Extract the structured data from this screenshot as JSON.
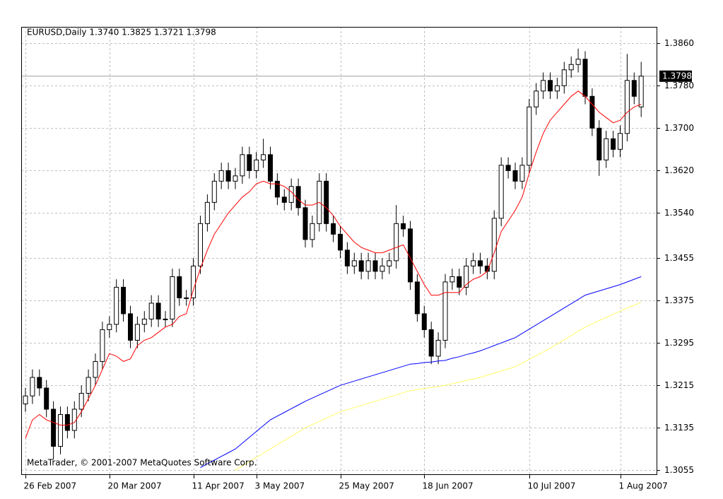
{
  "chart_data": {
    "type": "candlestick",
    "title": "EURUSD,Daily  1.3740 1.3825 1.3721 1.3798",
    "annotation": "MetaTrader, © 2001-2007 MetaQuotes Software Corp.",
    "categories": [
      "26 Feb 2007",
      null,
      null,
      null,
      null,
      null,
      null,
      null,
      null,
      null,
      null,
      null,
      "20 Mar 2007",
      null,
      null,
      null,
      null,
      null,
      null,
      null,
      null,
      null,
      null,
      null,
      "11 Apr 2007",
      null,
      null,
      null,
      null,
      null,
      null,
      null,
      null,
      "3 May 2007",
      null,
      null,
      null,
      null,
      null,
      null,
      null,
      null,
      null,
      null,
      null,
      "25 May 2007",
      null,
      null,
      null,
      null,
      null,
      null,
      null,
      null,
      null,
      null,
      null,
      "18 Jun 2007",
      null,
      null,
      null,
      null,
      null,
      null,
      null,
      null,
      null,
      null,
      null,
      null,
      null,
      null,
      "10 Jul 2007",
      null,
      null,
      null,
      null,
      null,
      null,
      null,
      null,
      null,
      null,
      null,
      null,
      "1 Aug 2007",
      null,
      null,
      null
    ],
    "open": [
      1.318,
      1.3195,
      1.323,
      1.321,
      1.317,
      1.31,
      1.316,
      1.313,
      1.317,
      1.32,
      1.323,
      1.326,
      1.332,
      1.333,
      1.34,
      1.335,
      1.33,
      1.333,
      1.334,
      1.337,
      1.334,
      1.334,
      1.342,
      1.338,
      1.338,
      1.344,
      1.352,
      1.356,
      1.36,
      1.362,
      1.36,
      1.361,
      1.365,
      1.362,
      1.364,
      1.365,
      1.36,
      1.357,
      1.356,
      1.359,
      1.355,
      1.349,
      1.352,
      1.36,
      1.352,
      1.35,
      1.347,
      1.344,
      1.345,
      1.343,
      1.345,
      1.343,
      1.344,
      1.345,
      1.352,
      1.351,
      1.341,
      1.335,
      1.332,
      1.327,
      1.33,
      1.341,
      1.342,
      1.34,
      1.344,
      1.345,
      1.344,
      1.343,
      1.353,
      1.363,
      1.362,
      1.36,
      1.363,
      1.374,
      1.377,
      1.379,
      1.377,
      1.378,
      1.381,
      1.382,
      1.383,
      1.376,
      1.37,
      1.364,
      1.368,
      1.366,
      1.369,
      1.379,
      1.374
    ],
    "high": [
      1.321,
      1.3245,
      1.3245,
      1.3225,
      1.3185,
      1.3175,
      1.3175,
      1.3185,
      1.3215,
      1.3245,
      1.3275,
      1.3335,
      1.3345,
      1.3415,
      1.3415,
      1.3365,
      1.3345,
      1.3355,
      1.3385,
      1.3385,
      1.3355,
      1.3435,
      1.3435,
      1.3395,
      1.3455,
      1.3535,
      1.3575,
      1.3615,
      1.3635,
      1.3635,
      1.3625,
      1.3665,
      1.3665,
      1.3655,
      1.368,
      1.3665,
      1.3615,
      1.3585,
      1.3605,
      1.3605,
      1.3565,
      1.3535,
      1.3615,
      1.3615,
      1.3535,
      1.3515,
      1.3485,
      1.3465,
      1.3465,
      1.3465,
      1.3465,
      1.3455,
      1.3465,
      1.3555,
      1.3535,
      1.3525,
      1.3425,
      1.3365,
      1.3335,
      1.3315,
      1.3425,
      1.3435,
      1.3435,
      1.3455,
      1.3465,
      1.3465,
      1.3455,
      1.3545,
      1.3645,
      1.3645,
      1.3635,
      1.3645,
      1.3755,
      1.3785,
      1.3805,
      1.3805,
      1.3795,
      1.3825,
      1.3835,
      1.385,
      1.3845,
      1.3775,
      1.3715,
      1.3695,
      1.3695,
      1.3705,
      1.384,
      1.3805,
      1.3825
    ],
    "low": [
      1.3165,
      1.318,
      1.3195,
      1.3155,
      1.3075,
      1.3085,
      1.3115,
      1.3115,
      1.3155,
      1.3185,
      1.3215,
      1.3245,
      1.3305,
      1.3315,
      1.3335,
      1.3285,
      1.3285,
      1.3315,
      1.3325,
      1.3325,
      1.3325,
      1.3325,
      1.3365,
      1.3365,
      1.3365,
      1.3425,
      1.3505,
      1.3545,
      1.3585,
      1.3585,
      1.3585,
      1.3595,
      1.3605,
      1.3605,
      1.3625,
      1.3585,
      1.3555,
      1.3545,
      1.3545,
      1.3535,
      1.3475,
      1.3475,
      1.3505,
      1.3505,
      1.3485,
      1.3455,
      1.3425,
      1.3425,
      1.3415,
      1.3415,
      1.3415,
      1.3415,
      1.3425,
      1.3435,
      1.3495,
      1.3395,
      1.3335,
      1.3305,
      1.3255,
      1.3255,
      1.3285,
      1.3395,
      1.3385,
      1.3385,
      1.3425,
      1.3425,
      1.3415,
      1.3415,
      1.3515,
      1.3605,
      1.3585,
      1.3585,
      1.3615,
      1.3725,
      1.3755,
      1.3755,
      1.3755,
      1.3765,
      1.3795,
      1.3805,
      1.3745,
      1.3685,
      1.361,
      1.3625,
      1.3645,
      1.3645,
      1.3675,
      1.3745,
      1.3721
    ],
    "close": [
      1.3195,
      1.323,
      1.321,
      1.317,
      1.31,
      1.316,
      1.313,
      1.317,
      1.32,
      1.323,
      1.326,
      1.332,
      1.333,
      1.34,
      1.335,
      1.33,
      1.333,
      1.334,
      1.337,
      1.334,
      1.334,
      1.342,
      1.338,
      1.338,
      1.344,
      1.352,
      1.356,
      1.36,
      1.362,
      1.36,
      1.361,
      1.365,
      1.362,
      1.364,
      1.365,
      1.36,
      1.357,
      1.356,
      1.359,
      1.355,
      1.349,
      1.352,
      1.36,
      1.352,
      1.35,
      1.347,
      1.344,
      1.345,
      1.343,
      1.345,
      1.343,
      1.344,
      1.345,
      1.352,
      1.351,
      1.341,
      1.335,
      1.332,
      1.327,
      1.33,
      1.341,
      1.342,
      1.34,
      1.344,
      1.345,
      1.344,
      1.343,
      1.353,
      1.363,
      1.362,
      1.36,
      1.363,
      1.374,
      1.377,
      1.379,
      1.377,
      1.378,
      1.381,
      1.382,
      1.383,
      1.376,
      1.37,
      1.364,
      1.368,
      1.366,
      1.369,
      1.379,
      1.376,
      1.3798
    ],
    "overlays": [
      {
        "color": "#ff0000",
        "values": [
          1.3115,
          1.315,
          1.316,
          1.315,
          1.3145,
          1.314,
          1.314,
          1.3145,
          1.3165,
          1.319,
          1.3215,
          1.3245,
          1.3275,
          1.327,
          1.326,
          1.3265,
          1.329,
          1.33,
          1.3305,
          1.3315,
          1.3325,
          1.333,
          1.3345,
          1.335,
          1.3395,
          1.3435,
          1.347,
          1.35,
          1.352,
          1.354,
          1.3555,
          1.357,
          1.358,
          1.3595,
          1.36,
          1.3595,
          1.3595,
          1.359,
          1.358,
          1.3565,
          1.3555,
          1.3555,
          1.356,
          1.355,
          1.3535,
          1.3515,
          1.35,
          1.3485,
          1.3475,
          1.347,
          1.3465,
          1.3465,
          1.347,
          1.3475,
          1.348,
          1.3455,
          1.343,
          1.3405,
          1.3385,
          1.3385,
          1.339,
          1.339,
          1.339,
          1.3405,
          1.3415,
          1.342,
          1.343,
          1.3465,
          1.3505,
          1.3525,
          1.3545,
          1.357,
          1.3615,
          1.3655,
          1.369,
          1.3715,
          1.373,
          1.3745,
          1.376,
          1.377,
          1.376,
          1.3745,
          1.373,
          1.372,
          1.371,
          1.3715,
          1.373,
          1.374,
          1.3745
        ]
      },
      {
        "color": "#0000ff",
        "values": [
          null,
          null,
          null,
          null,
          null,
          null,
          null,
          null,
          null,
          null,
          null,
          null,
          null,
          null,
          null,
          null,
          null,
          null,
          null,
          null,
          null,
          null,
          null,
          null,
          null,
          1.306,
          1.3067,
          1.3074,
          1.3081,
          1.3088,
          1.3095,
          1.3106,
          1.3117,
          1.3128,
          1.3139,
          1.315,
          1.3157,
          1.3164,
          1.3171,
          1.3178,
          1.3185,
          1.3191,
          1.3197,
          1.3203,
          1.3209,
          1.3215,
          1.3219,
          1.3223,
          1.3227,
          1.3231,
          1.3235,
          1.3239,
          1.3243,
          1.3247,
          1.3251,
          1.3255,
          1.3256,
          1.3258,
          1.3259,
          1.3261,
          1.3262,
          1.3266,
          1.3269,
          1.3273,
          1.3276,
          1.328,
          1.3285,
          1.329,
          1.3295,
          1.33,
          1.3305,
          1.3313,
          1.3321,
          1.3329,
          1.3337,
          1.3345,
          1.3353,
          1.3361,
          1.3369,
          1.3377,
          1.3385,
          1.3389,
          1.3393,
          1.3397,
          1.3401,
          1.3405,
          1.341,
          1.3415,
          1.342
        ]
      },
      {
        "color": "#ffff66",
        "values": [
          null,
          null,
          null,
          null,
          null,
          null,
          null,
          null,
          null,
          null,
          null,
          null,
          null,
          null,
          null,
          null,
          null,
          null,
          null,
          null,
          null,
          null,
          null,
          null,
          null,
          null,
          null,
          null,
          null,
          null,
          1.3055,
          1.3063,
          1.3071,
          1.3079,
          1.3087,
          1.3095,
          1.3103,
          1.3111,
          1.3119,
          1.3127,
          1.3135,
          1.3141,
          1.3147,
          1.3153,
          1.3159,
          1.3165,
          1.3169,
          1.3173,
          1.3177,
          1.3181,
          1.3185,
          1.3189,
          1.3193,
          1.3197,
          1.3201,
          1.3205,
          1.3207,
          1.3209,
          1.3211,
          1.3213,
          1.3215,
          1.3218,
          1.3221,
          1.3224,
          1.3227,
          1.323,
          1.3234,
          1.3238,
          1.3242,
          1.3246,
          1.325,
          1.3257,
          1.3264,
          1.3271,
          1.3278,
          1.3285,
          1.3293,
          1.3301,
          1.3309,
          1.3317,
          1.3325,
          1.3331,
          1.3337,
          1.3343,
          1.3349,
          1.3355,
          1.3361,
          1.3366,
          1.3372
        ]
      }
    ],
    "last_price": {
      "value": 1.3798,
      "label": "1.3798"
    },
    "ylim": [
      1.3046,
      1.3891
    ],
    "yticks": [
      {
        "value": 1.386,
        "label": "1.3860"
      },
      {
        "value": 1.378,
        "label": "1.3780"
      },
      {
        "value": 1.37,
        "label": "1.3700"
      },
      {
        "value": 1.362,
        "label": "1.3620"
      },
      {
        "value": 1.354,
        "label": "1.3540"
      },
      {
        "value": 1.3455,
        "label": "1.3455"
      },
      {
        "value": 1.3375,
        "label": "1.3375"
      },
      {
        "value": 1.3295,
        "label": "1.3295"
      },
      {
        "value": 1.3215,
        "label": "1.3215"
      },
      {
        "value": 1.3135,
        "label": "1.3135"
      },
      {
        "value": 1.3055,
        "label": "1.3055"
      }
    ],
    "grid": true,
    "up_color": "#ffffff",
    "down_color": "#000000",
    "wick_color": "#000000"
  }
}
